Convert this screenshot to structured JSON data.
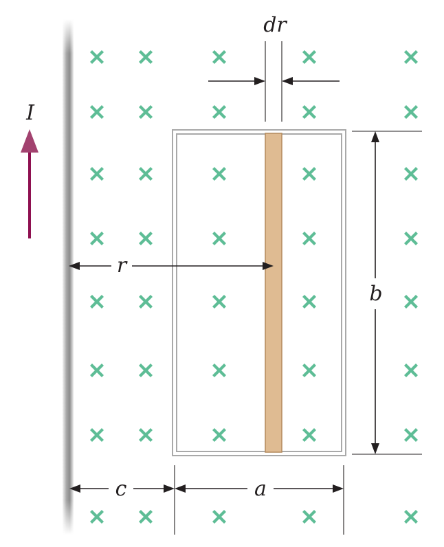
{
  "labels": {
    "current": "I",
    "strip_width": "dr",
    "distance_r": "r",
    "height": "b",
    "gap": "c",
    "width": "a"
  },
  "icons": {
    "field_symbol": "x-mark-into-page",
    "current_arrow": "arrow-up"
  },
  "colors": {
    "field_marks": "#5ebd96",
    "current_arrow": "#8e1050",
    "strip_fill": "#dfbb92",
    "strip_edge": "#b48a5c",
    "wire": "#9e9e9e",
    "loop_frame": "#a9a9a9"
  }
}
